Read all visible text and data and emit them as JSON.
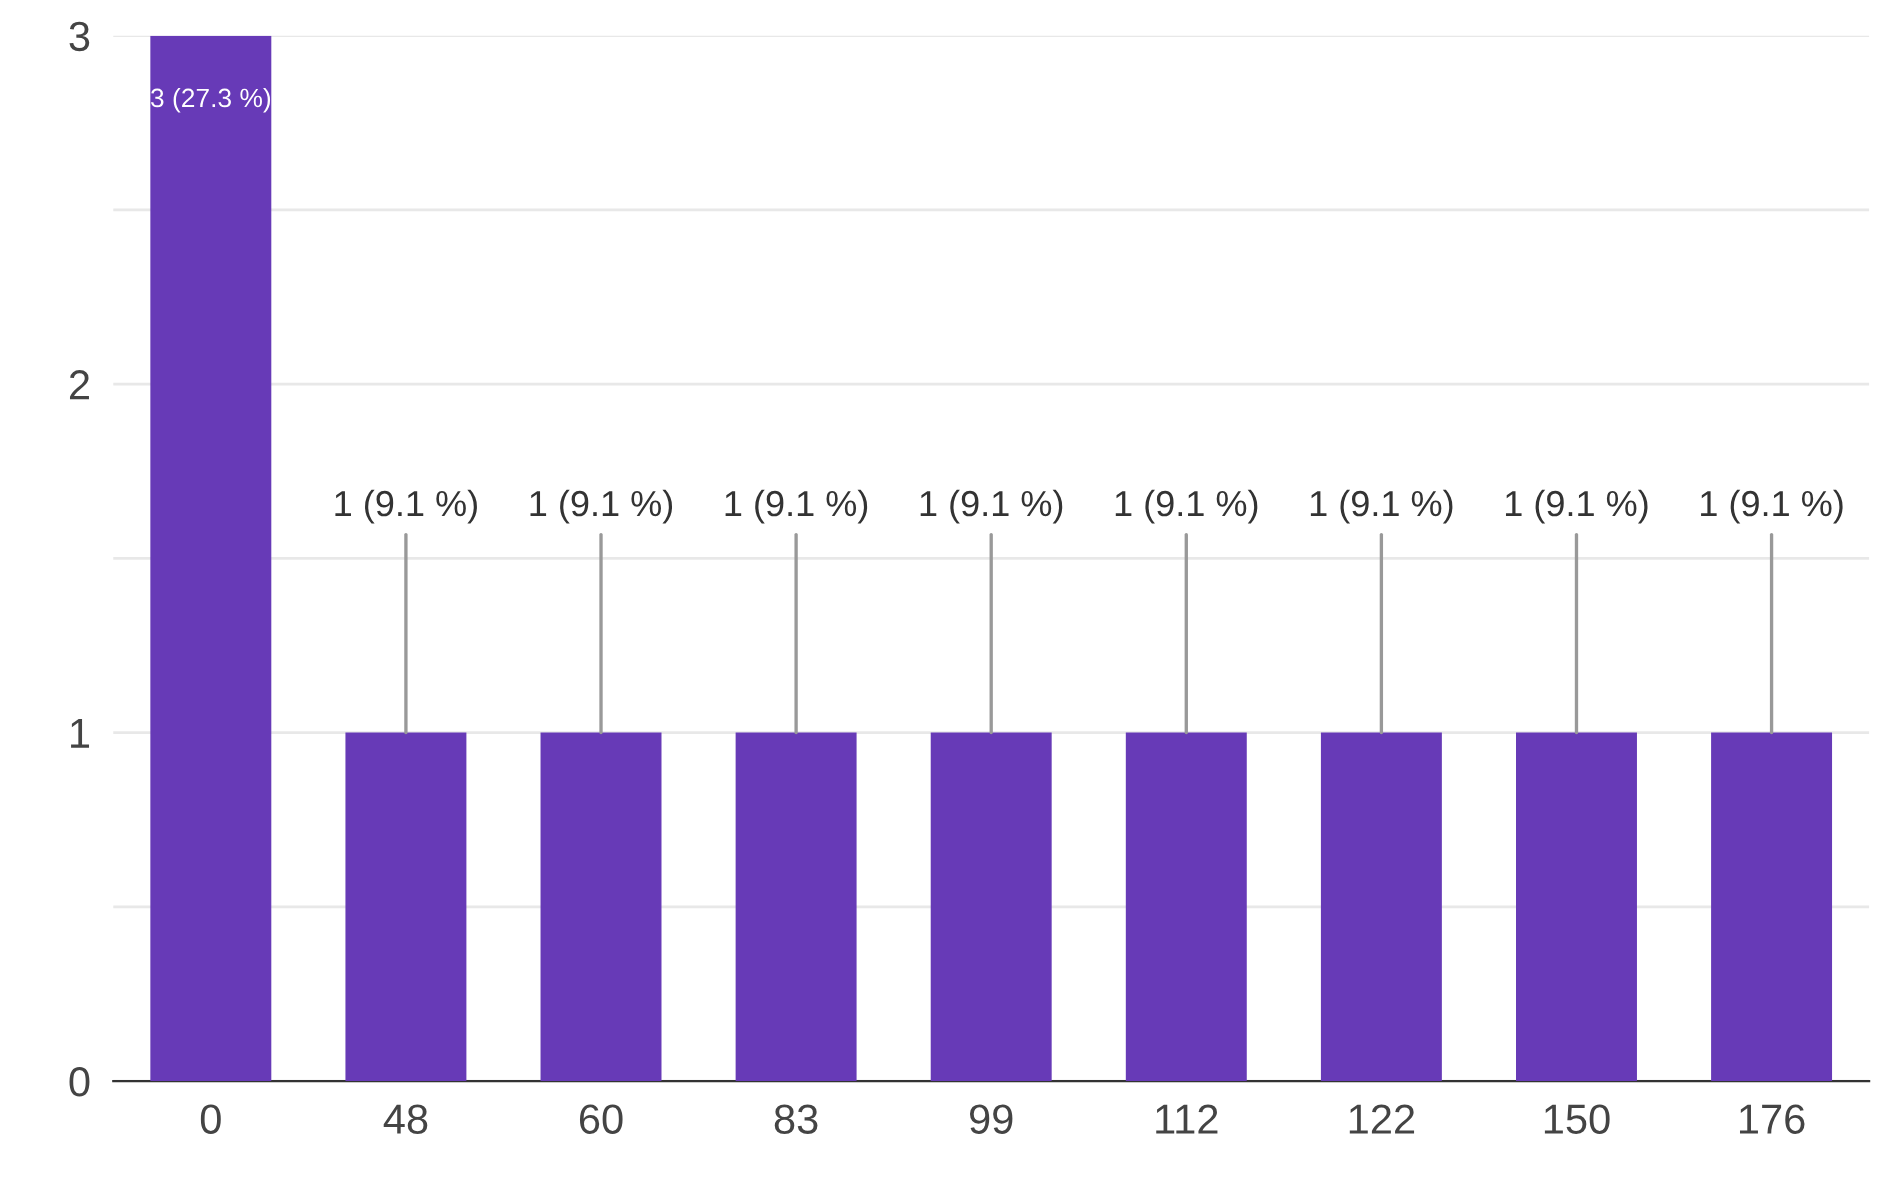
{
  "chart_data": {
    "type": "bar",
    "categories": [
      "0",
      "48",
      "60",
      "83",
      "99",
      "112",
      "122",
      "150",
      "176"
    ],
    "values": [
      3,
      1,
      1,
      1,
      1,
      1,
      1,
      1,
      1
    ],
    "color": "#673ab7",
    "value_labels": [
      "3 (27.3 %)",
      "1 (9.1 %)",
      "1 (9.1 %)",
      "1 (9.1 %)",
      "1 (9.1 %)",
      "1 (9.1 %)",
      "1 (9.1 %)",
      "1 (9.1 %)",
      "1 (9.1 %)"
    ],
    "ylim": [
      0,
      3
    ],
    "yticks": [
      0,
      {
        "value": 0.5,
        "label": null
      },
      1,
      {
        "value": 1.5,
        "label": null
      },
      2,
      {
        "value": 2.5,
        "label": null
      },
      3
    ],
    "grid": "y"
  }
}
